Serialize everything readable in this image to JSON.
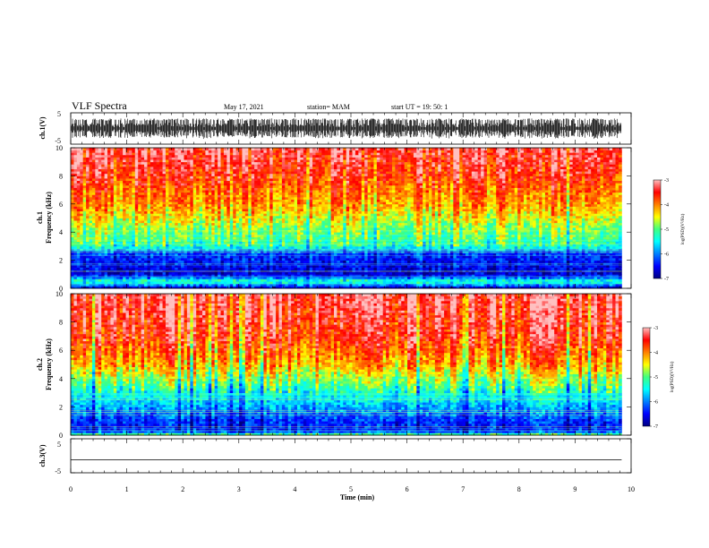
{
  "header": {
    "title": "VLF Spectra",
    "date": "May 17, 2021",
    "station": "station= MAM",
    "start": "start  UT  =    19: 50: 1"
  },
  "chart_data": [
    {
      "type": "line",
      "name_hint": "ch1 waveform",
      "ylabel": "ch.1(V)",
      "ylim": [
        -5,
        5
      ],
      "xlim": [
        0,
        10
      ],
      "ytick_labels": [
        "-5",
        "5"
      ],
      "waveform": "dense burst noise spanning roughly -3 to +3 V across 0 to 9.83 min"
    },
    {
      "type": "heatmap",
      "ylabel_line1": "ch.1",
      "ylabel_line2": "Frequency (kHz)",
      "ylim": [
        0,
        10
      ],
      "xlim": [
        0,
        10
      ],
      "data_end_min": 9.83,
      "ytick_labels": [
        "0",
        "2",
        "4",
        "6",
        "8",
        "10"
      ],
      "colorbar": {
        "label": "log(PSD)(V²/Hz)",
        "range": [
          -7,
          -3
        ],
        "tick_labels": [
          "-7",
          "-6",
          "-5",
          "-4",
          "-3"
        ]
      },
      "frequency_profile_khz": [
        [
          0,
          -6.8
        ],
        [
          0.5,
          -5.2
        ],
        [
          1,
          -6.7
        ],
        [
          2.5,
          -6.3
        ],
        [
          3,
          -5.3
        ],
        [
          3.5,
          -5.0
        ],
        [
          4.2,
          -4.9
        ],
        [
          5,
          -4.5
        ],
        [
          6,
          -4.1
        ],
        [
          7,
          -3.9
        ],
        [
          8,
          -3.6
        ],
        [
          10,
          -3.3
        ]
      ]
    },
    {
      "type": "heatmap",
      "ylabel_line1": "ch.2",
      "ylabel_line2": "Frequency (kHz)",
      "ylim": [
        0,
        10
      ],
      "xlim": [
        0,
        10
      ],
      "data_end_min": 9.83,
      "ytick_labels": [
        "0",
        "2",
        "4",
        "6",
        "8",
        "10"
      ],
      "colorbar": {
        "label": "log(PSD)(V²/Hz)",
        "range": [
          -7,
          -3
        ],
        "tick_labels": [
          "-7",
          "-6",
          "-5",
          "-4",
          "-3"
        ]
      },
      "frequency_profile_khz": [
        [
          0,
          -4.6
        ],
        [
          0.3,
          -6.4
        ],
        [
          1,
          -6.3
        ],
        [
          2,
          -5.8
        ],
        [
          3,
          -5.3
        ],
        [
          4,
          -4.7
        ],
        [
          5,
          -4.1
        ],
        [
          6,
          -3.8
        ],
        [
          7,
          -3.5
        ],
        [
          10,
          -3.2
        ]
      ]
    },
    {
      "type": "line",
      "ylabel": "ch.3(V)",
      "ylim": [
        -5,
        5
      ],
      "xlim": [
        0,
        10
      ],
      "ytick_labels": [
        "-5",
        "5"
      ],
      "constant_value_v": -1.2,
      "xlabel": "Time (min)",
      "xtick_labels": [
        "0",
        "1",
        "2",
        "3",
        "4",
        "5",
        "6",
        "7",
        "8",
        "9",
        "10"
      ]
    }
  ]
}
